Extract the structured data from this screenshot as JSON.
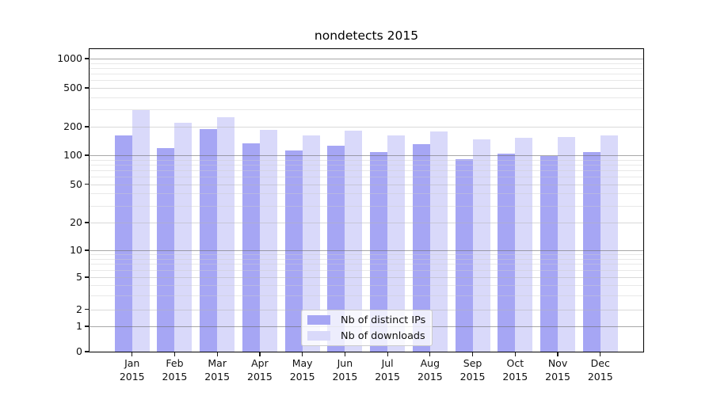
{
  "chart_data": {
    "type": "bar",
    "title": "nondetects 2015",
    "months": [
      "Jan",
      "Feb",
      "Mar",
      "Apr",
      "May",
      "Jun",
      "Jul",
      "Aug",
      "Sep",
      "Oct",
      "Nov",
      "Dec"
    ],
    "year": "2015",
    "y_ticks": [
      0,
      1,
      2,
      5,
      10,
      20,
      50,
      100,
      200,
      500,
      1000
    ],
    "y_scale": "symlog",
    "ylim": [
      0,
      1300
    ],
    "grid": true,
    "legend_position": "lower center",
    "series": [
      {
        "name": "Nb of distinct IPs",
        "color": "#a6a6f4",
        "values": [
          161,
          120,
          190,
          134,
          112,
          125,
          108,
          130,
          91,
          103,
          98,
          107
        ]
      },
      {
        "name": "Nb of downloads",
        "color": "#d9d9fa",
        "values": [
          295,
          220,
          252,
          186,
          161,
          182,
          163,
          179,
          148,
          152,
          155,
          161
        ]
      }
    ]
  }
}
